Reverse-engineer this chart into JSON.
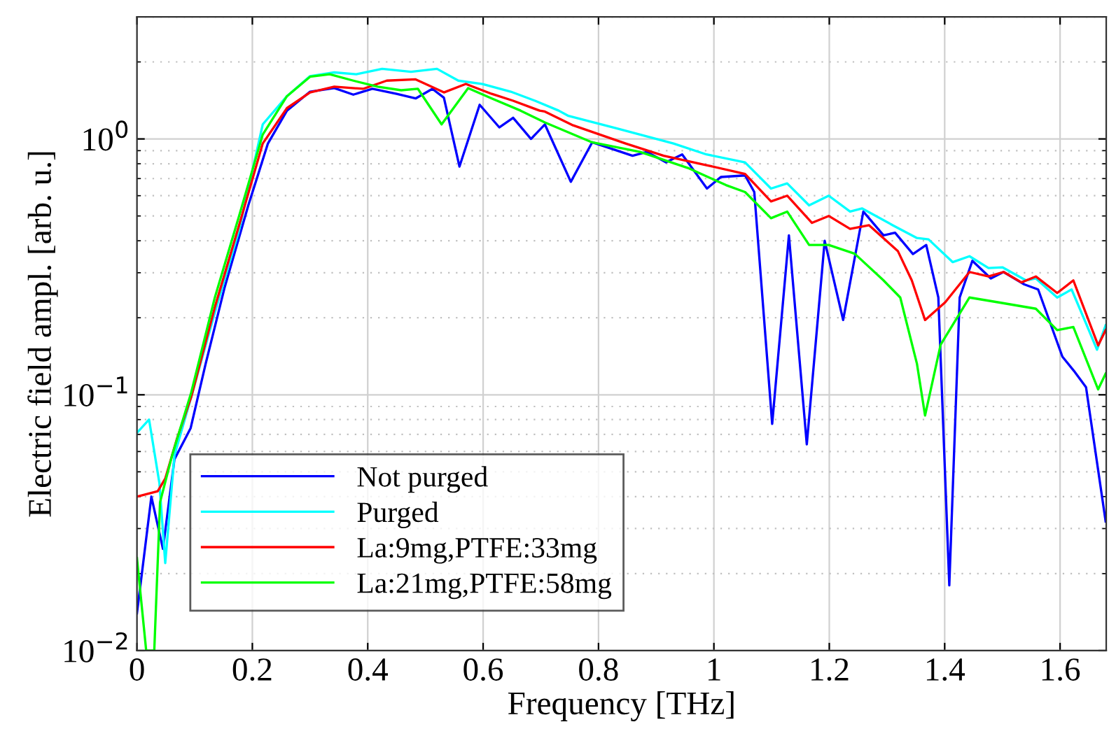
{
  "chart_data": {
    "type": "line",
    "xlabel": "Frequency [THz]",
    "ylabel": "Electric field ampl. [arb. u.]",
    "xlim": [
      0,
      1.68
    ],
    "ylim": [
      0.01,
      3
    ],
    "log": "y",
    "xticks": [
      0,
      0.2,
      0.4,
      0.6,
      0.8,
      1,
      1.2,
      1.4,
      1.6
    ],
    "yticks": [
      {
        "value": 0.01,
        "label": "10$^{−2}$"
      },
      {
        "value": 0.1,
        "label": "10$^{−1}$"
      },
      {
        "value": 1,
        "label": "10$^{0}$"
      }
    ],
    "grid": true,
    "legend": "bottom left",
    "line_style": "solid",
    "marker": "none",
    "series": [
      {
        "name": "Not purged",
        "color": "#0000ff",
        "x": [
          0,
          0.025,
          0.045,
          0.065,
          0.086,
          0.093,
          0.119,
          0.152,
          0.193,
          0.227,
          0.26,
          0.3,
          0.342,
          0.375,
          0.408,
          0.45,
          0.483,
          0.512,
          0.532,
          0.559,
          0.594,
          0.628,
          0.652,
          0.683,
          0.707,
          0.752,
          0.789,
          0.859,
          0.884,
          0.917,
          0.945,
          0.988,
          1.012,
          1.054,
          1.07,
          1.101,
          1.13,
          1.161,
          1.192,
          1.224,
          1.259,
          1.294,
          1.314,
          1.345,
          1.368,
          1.389,
          1.408,
          1.426,
          1.448,
          1.48,
          1.502,
          1.538,
          1.562,
          1.604,
          1.624,
          1.645,
          1.679
        ],
        "values": [
          0.014,
          0.04,
          0.025,
          0.056,
          0.069,
          0.074,
          0.132,
          0.263,
          0.55,
          0.96,
          1.29,
          1.53,
          1.58,
          1.49,
          1.57,
          1.5,
          1.44,
          1.57,
          1.45,
          0.78,
          1.36,
          1.11,
          1.21,
          1.0,
          1.14,
          0.68,
          0.97,
          0.86,
          0.89,
          0.81,
          0.87,
          0.64,
          0.71,
          0.72,
          0.62,
          0.077,
          0.42,
          0.064,
          0.4,
          0.196,
          0.52,
          0.42,
          0.43,
          0.355,
          0.385,
          0.24,
          0.018,
          0.24,
          0.334,
          0.285,
          0.302,
          0.27,
          0.258,
          0.141,
          0.124,
          0.107,
          0.032
        ]
      },
      {
        "name": "Purged",
        "color": "#00ffff",
        "x": [
          0,
          0.021,
          0.039,
          0.049,
          0.065,
          0.094,
          0.135,
          0.177,
          0.218,
          0.26,
          0.3,
          0.342,
          0.38,
          0.425,
          0.475,
          0.52,
          0.557,
          0.599,
          0.648,
          0.69,
          0.731,
          0.748,
          0.831,
          0.872,
          0.93,
          0.987,
          1.054,
          1.099,
          1.127,
          1.165,
          1.199,
          1.236,
          1.257,
          1.31,
          1.352,
          1.372,
          1.414,
          1.443,
          1.476,
          1.5,
          1.541,
          1.558,
          1.595,
          1.62,
          1.645,
          1.664,
          1.679
        ],
        "values": [
          0.071,
          0.08,
          0.045,
          0.022,
          0.058,
          0.098,
          0.21,
          0.44,
          1.14,
          1.47,
          1.76,
          1.82,
          1.79,
          1.88,
          1.83,
          1.88,
          1.69,
          1.64,
          1.53,
          1.41,
          1.29,
          1.23,
          1.1,
          1.04,
          0.96,
          0.87,
          0.81,
          0.64,
          0.67,
          0.55,
          0.6,
          0.52,
          0.535,
          0.46,
          0.41,
          0.405,
          0.33,
          0.348,
          0.313,
          0.315,
          0.28,
          0.285,
          0.24,
          0.258,
          0.19,
          0.15,
          0.187
        ]
      },
      {
        "name": "La:9mg,PTFE:33mg",
        "color": "#ff0000",
        "x": [
          0,
          0.036,
          0.049,
          0.069,
          0.094,
          0.135,
          0.177,
          0.218,
          0.26,
          0.3,
          0.342,
          0.392,
          0.433,
          0.483,
          0.532,
          0.57,
          0.615,
          0.652,
          0.698,
          0.707,
          0.756,
          0.847,
          0.913,
          0.987,
          1.054,
          1.099,
          1.127,
          1.17,
          1.199,
          1.236,
          1.269,
          1.319,
          1.343,
          1.366,
          1.401,
          1.443,
          1.476,
          1.502,
          1.533,
          1.558,
          1.595,
          1.623,
          1.666,
          1.679
        ],
        "values": [
          0.04,
          0.042,
          0.047,
          0.067,
          0.098,
          0.22,
          0.46,
          0.96,
          1.32,
          1.52,
          1.6,
          1.57,
          1.69,
          1.71,
          1.52,
          1.64,
          1.5,
          1.41,
          1.29,
          1.28,
          1.13,
          0.96,
          0.86,
          0.79,
          0.73,
          0.57,
          0.6,
          0.47,
          0.5,
          0.445,
          0.46,
          0.364,
          0.28,
          0.196,
          0.23,
          0.302,
          0.29,
          0.302,
          0.275,
          0.29,
          0.25,
          0.28,
          0.156,
          0.179
        ]
      },
      {
        "name": "La:21mg,PTFE:58mg",
        "color": "#00ff00",
        "x": [
          0,
          0.016,
          0.03,
          0.04,
          0.061,
          0.094,
          0.135,
          0.177,
          0.218,
          0.26,
          0.3,
          0.334,
          0.375,
          0.417,
          0.458,
          0.487,
          0.528,
          0.574,
          0.615,
          0.665,
          0.707,
          0.789,
          0.872,
          0.955,
          1.021,
          1.054,
          1.099,
          1.127,
          1.165,
          1.199,
          1.244,
          1.294,
          1.323,
          1.352,
          1.366,
          1.393,
          1.443,
          1.492,
          1.558,
          1.595,
          1.623,
          1.666,
          1.679
        ],
        "values": [
          0.023,
          0.01,
          0.01,
          0.038,
          0.058,
          0.102,
          0.24,
          0.5,
          1.04,
          1.47,
          1.75,
          1.79,
          1.69,
          1.6,
          1.55,
          1.57,
          1.14,
          1.58,
          1.44,
          1.29,
          1.16,
          0.97,
          0.89,
          0.77,
          0.66,
          0.62,
          0.49,
          0.52,
          0.385,
          0.385,
          0.356,
          0.28,
          0.24,
          0.132,
          0.083,
          0.157,
          0.24,
          0.23,
          0.217,
          0.179,
          0.184,
          0.105,
          0.121
        ]
      }
    ]
  }
}
